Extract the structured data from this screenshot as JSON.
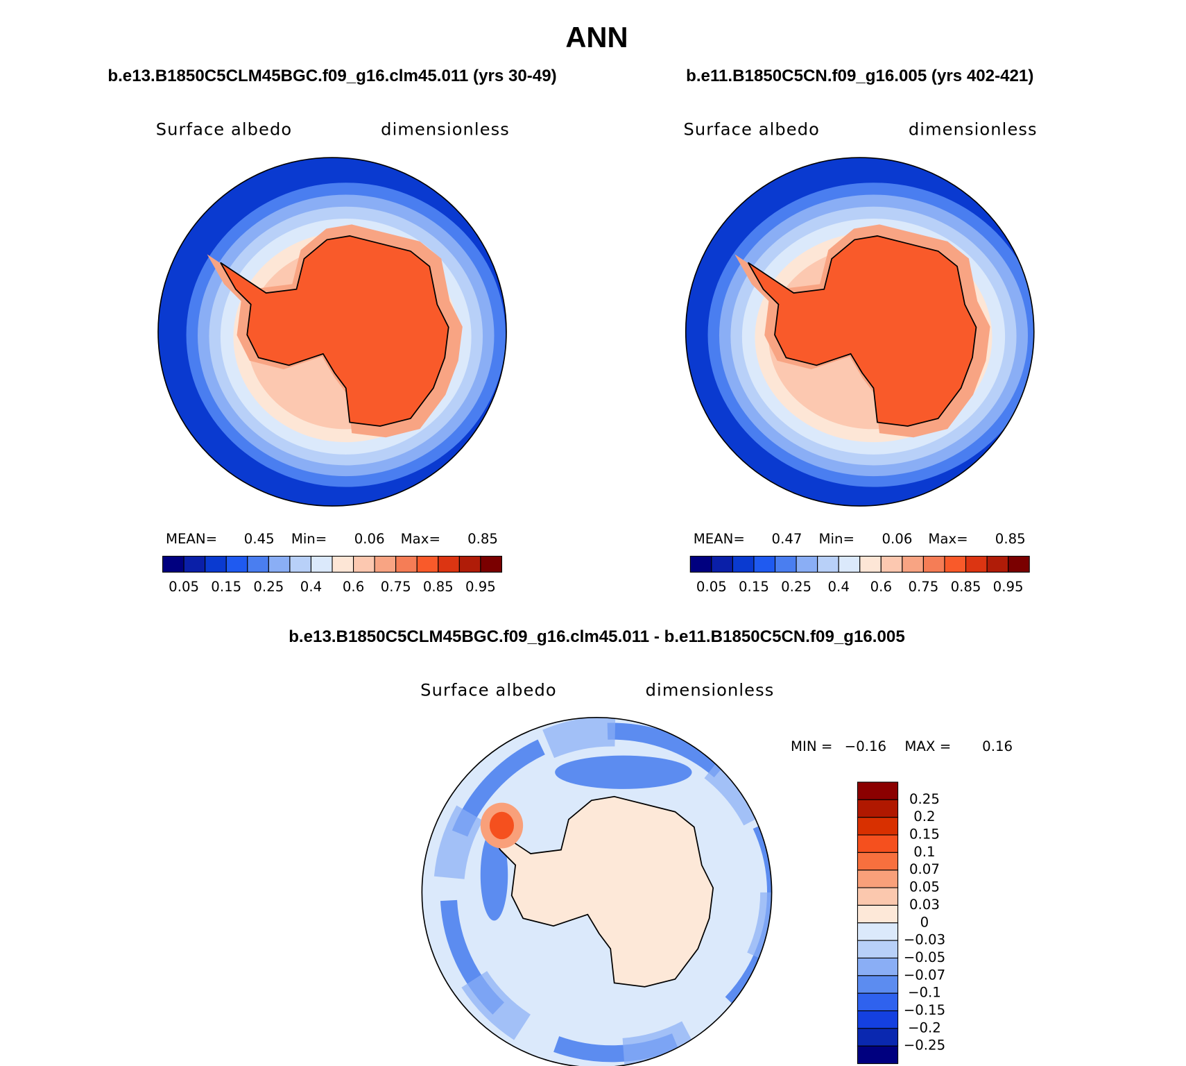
{
  "title": "ANN",
  "panels": [
    {
      "case": "b.e13.B1850C5CLM45BGC.f09_g16.clm45.011 (yrs 30-49)",
      "variable": "Surface albedo",
      "units": "dimensionless",
      "stats": {
        "mean_label": "MEAN=",
        "mean": 0.45,
        "min_label": "Min=",
        "min": 0.06,
        "max_label": "Max=",
        "max": 0.85
      }
    },
    {
      "case": "b.e11.B1850C5CN.f09_g16.005 (yrs 402-421)",
      "variable": "Surface albedo",
      "units": "dimensionless",
      "stats": {
        "mean_label": "MEAN=",
        "mean": 0.47,
        "min_label": "Min=",
        "min": 0.06,
        "max_label": "Max=",
        "max": 0.85
      }
    }
  ],
  "colorbar": {
    "colors": [
      "#00007f",
      "#0a1fa8",
      "#0a3ad0",
      "#1f5af0",
      "#4a7ef0",
      "#8aaef5",
      "#b8d0f8",
      "#dbe9fb",
      "#fde6d6",
      "#fcc8b0",
      "#f8a483",
      "#f57d56",
      "#f95a2a",
      "#dc3512",
      "#b01c08",
      "#7a0000"
    ],
    "labels": [
      0.05,
      0.15,
      0.25,
      0.4,
      0.6,
      0.75,
      0.85,
      0.95
    ]
  },
  "difference": {
    "case": "b.e13.B1850C5CLM45BGC.f09_g16.clm45.011 - b.e11.B1850C5CN.f09_g16.005",
    "variable": "Surface albedo",
    "units": "dimensionless",
    "stats": {
      "min_label": "MIN =",
      "min": "−0.16",
      "max_label": "MAX =",
      "max": 0.16
    },
    "colorbar": {
      "colors": [
        "#8b0000",
        "#b01800",
        "#d83000",
        "#f5501e",
        "#f7703e",
        "#f9a07a",
        "#fbc8ae",
        "#fde8d8",
        "#dbe9fb",
        "#b8d0f8",
        "#8aaef5",
        "#5c8cf0",
        "#2f62ee",
        "#1440e0",
        "#0a28b0",
        "#00007f"
      ],
      "labels": [
        0.25,
        0.2,
        0.15,
        0.1,
        0.07,
        0.05,
        0.03,
        0,
        {
          "value": -0.03,
          "label": "−0.03"
        },
        {
          "value": -0.05,
          "label": "−0.05"
        },
        {
          "value": -0.07,
          "label": "−0.07"
        },
        {
          "value": -0.1,
          "label": "−0.1"
        },
        {
          "value": -0.15,
          "label": "−0.15"
        },
        {
          "value": -0.2,
          "label": "−0.2"
        },
        {
          "value": -0.25,
          "label": "−0.25"
        }
      ]
    }
  }
}
